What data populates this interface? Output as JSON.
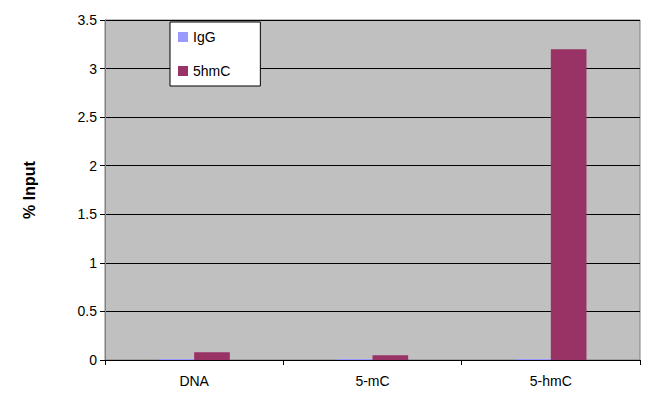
{
  "chart_data": {
    "type": "bar",
    "y_label": "% Input",
    "categories": [
      "DNA",
      "5-mC",
      "5-hmC"
    ],
    "series": [
      {
        "name": "IgG",
        "color": "#9999ff",
        "values": [
          0.01,
          0.01,
          0.01
        ]
      },
      {
        "name": "5hmC",
        "color": "#993366",
        "values": [
          0.08,
          0.05,
          3.2
        ]
      }
    ],
    "ylim": [
      0,
      3.5
    ],
    "yticks": [
      0,
      0.5,
      1,
      1.5,
      2,
      2.5,
      3,
      3.5
    ],
    "grid": true,
    "legend": "top-left"
  }
}
